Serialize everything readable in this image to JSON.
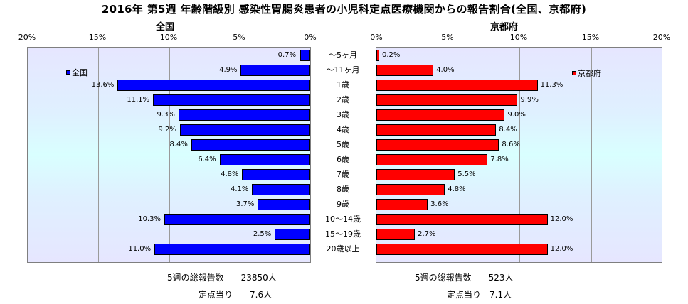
{
  "title": "2016年 第5週 年齢階級別 感染性胃腸炎患者の小児科定点医療機関からの報告割合(全国、京都府)",
  "colors": {
    "national": "#0000ff",
    "kyoto": "#ff0000"
  },
  "chart_data": [
    {
      "type": "bar",
      "orientation": "horizontal",
      "direction": "right-to-left",
      "panel_title": "全国",
      "legend": "全国",
      "legend_position": "top-left",
      "xlim": [
        0,
        20
      ],
      "x_ticks": [
        "20%",
        "15%",
        "10%",
        "5%",
        "0%"
      ],
      "grid": true,
      "categories": [
        "〜5ヶ月",
        "〜11ヶ月",
        "1歳",
        "2歳",
        "3歳",
        "4歳",
        "5歳",
        "6歳",
        "7歳",
        "8歳",
        "9歳",
        "10〜14歳",
        "15〜19歳",
        "20歳以上"
      ],
      "values": [
        0.7,
        4.9,
        13.6,
        11.1,
        9.3,
        9.2,
        8.4,
        6.4,
        4.8,
        4.1,
        3.7,
        10.3,
        2.5,
        11.0
      ],
      "value_labels": [
        "0.7%",
        "4.9%",
        "13.6%",
        "11.1%",
        "9.3%",
        "9.2%",
        "8.4%",
        "6.4%",
        "4.8%",
        "4.1%",
        "3.7%",
        "10.3%",
        "2.5%",
        "11.0%"
      ]
    },
    {
      "type": "bar",
      "orientation": "horizontal",
      "direction": "left-to-right",
      "panel_title": "京都府",
      "legend": "京都府",
      "legend_position": "top-right",
      "xlim": [
        0,
        20
      ],
      "x_ticks": [
        "0%",
        "5%",
        "10%",
        "15%",
        "20%"
      ],
      "grid": true,
      "categories": [
        "〜5ヶ月",
        "〜11ヶ月",
        "1歳",
        "2歳",
        "3歳",
        "4歳",
        "5歳",
        "6歳",
        "7歳",
        "8歳",
        "9歳",
        "10〜14歳",
        "15〜19歳",
        "20歳以上"
      ],
      "values": [
        0.2,
        4.0,
        11.3,
        9.9,
        9.0,
        8.4,
        8.6,
        7.8,
        5.5,
        4.8,
        3.6,
        12.0,
        2.7,
        12.0
      ],
      "value_labels": [
        "0.2%",
        "4.0%",
        "11.3%",
        "9.9%",
        "9.0%",
        "8.4%",
        "8.6%",
        "7.8%",
        "5.5%",
        "4.8%",
        "3.6%",
        "12.0%",
        "2.7%",
        "12.0%"
      ]
    }
  ],
  "footer": {
    "national_total": "5週の総報告数　　23850人",
    "national_per_site": "定点当り　　7.6人",
    "kyoto_total": "5週の総報告数　　523人",
    "kyoto_per_site": "定点当り　7.1人"
  }
}
